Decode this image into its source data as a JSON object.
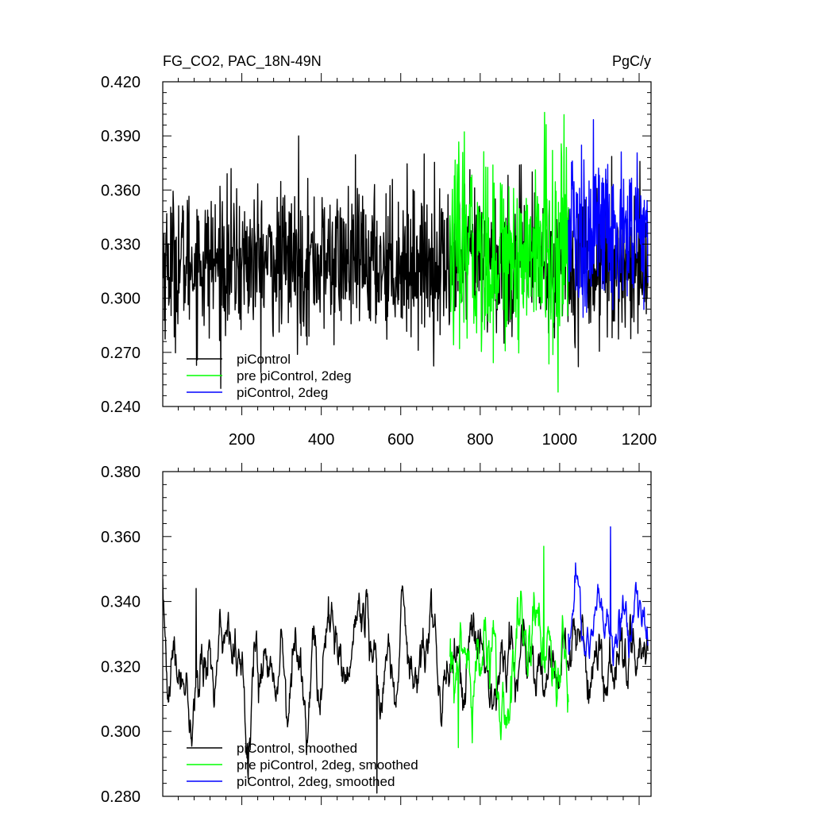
{
  "colors": {
    "piControl": "#000000",
    "pre_piControl_2deg": "#00ff00",
    "piControl_2deg": "#0000ff"
  },
  "chart_data": [
    {
      "type": "line",
      "title": "FG_CO2, PAC_18N-49N",
      "units": "PgC/y",
      "xlim": [
        1,
        1230
      ],
      "ylim": [
        0.24,
        0.42
      ],
      "x_ticks": [
        200,
        400,
        600,
        800,
        1000,
        1200
      ],
      "x_tick_labels": [
        "200",
        "400",
        "600",
        "800",
        "1000",
        "1200"
      ],
      "y_ticks": [
        0.24,
        0.27,
        0.3,
        0.33,
        0.36,
        0.39,
        0.42
      ],
      "y_tick_labels": [
        "0.240",
        "0.270",
        "0.300",
        "0.330",
        "0.360",
        "0.390",
        "0.420"
      ],
      "grid": false,
      "legend_position": "bottom-left",
      "series": [
        {
          "name": "piControl",
          "color": "#000000",
          "x_range": [
            1,
            1222
          ],
          "mean": 0.32,
          "amplitude": 0.025,
          "trend": 0.0
        },
        {
          "name": "pre piControl, 2deg",
          "color": "#00ff00",
          "x_range": [
            724,
            1022
          ],
          "mean": 0.325,
          "amplitude": 0.033,
          "trend": 0.0
        },
        {
          "name": "piControl, 2deg",
          "color": "#0000ff",
          "x_range": [
            1022,
            1222
          ],
          "mean": 0.335,
          "amplitude": 0.028,
          "trend": 0.0
        }
      ],
      "extremes": [
        {
          "series": "piControl",
          "x": 343,
          "y": 0.39
        },
        {
          "series": "pre piControl, 2deg",
          "x": 962,
          "y": 0.403
        },
        {
          "series": "pre piControl, 2deg",
          "x": 996,
          "y": 0.248
        },
        {
          "series": "piControl, 2deg",
          "x": 1085,
          "y": 0.399
        }
      ]
    },
    {
      "type": "line",
      "title": "",
      "units": "",
      "xlim": [
        1,
        1230
      ],
      "ylim": [
        0.28,
        0.38
      ],
      "x_ticks": [
        200,
        400,
        600,
        800,
        1000,
        1200
      ],
      "x_tick_labels": [],
      "y_ticks": [
        0.28,
        0.3,
        0.32,
        0.34,
        0.36,
        0.38
      ],
      "y_tick_labels": [
        "0.280",
        "0.300",
        "0.320",
        "0.340",
        "0.360",
        "0.380"
      ],
      "grid": false,
      "legend_position": "bottom-left",
      "series": [
        {
          "name": "piControl, smoothed",
          "color": "#000000",
          "x_range": [
            1,
            1222
          ],
          "mean": 0.321,
          "amplitude": 0.011,
          "trend": 0.0
        },
        {
          "name": "pre piControl, 2deg, smoothed",
          "color": "#00ff00",
          "x_range": [
            724,
            1022
          ],
          "mean": 0.322,
          "amplitude": 0.013,
          "trend": 0.02
        },
        {
          "name": "piControl, 2deg, smoothed",
          "color": "#0000ff",
          "x_range": [
            1022,
            1222
          ],
          "mean": 0.334,
          "amplitude": 0.008,
          "trend": 0.0
        }
      ],
      "extremes": [
        {
          "series": "piControl, smoothed",
          "x": 85,
          "y": 0.344
        },
        {
          "series": "piControl, smoothed",
          "x": 540,
          "y": 0.281
        },
        {
          "series": "pre piControl, 2deg, smoothed",
          "x": 745,
          "y": 0.295
        },
        {
          "series": "pre piControl, 2deg, smoothed",
          "x": 960,
          "y": 0.357
        },
        {
          "series": "piControl, 2deg, smoothed",
          "x": 1128,
          "y": 0.363
        }
      ]
    }
  ]
}
